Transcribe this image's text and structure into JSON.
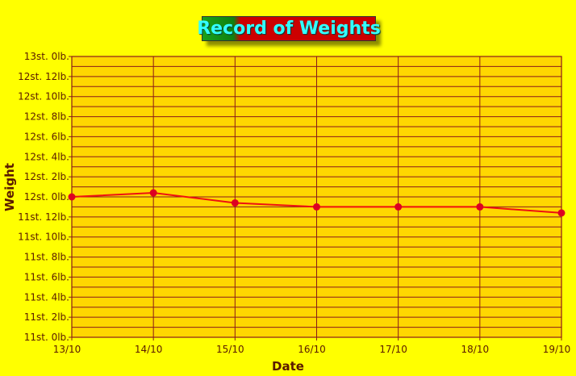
{
  "title": "Record of Weights",
  "chart_data": {
    "type": "line",
    "title": "Record of Weights",
    "xlabel": "Date",
    "ylabel": "Weight",
    "categories": [
      "13/10",
      "14/10",
      "15/10",
      "16/10",
      "17/10",
      "18/10",
      "19/10"
    ],
    "series": [
      {
        "values": [
          168.0,
          168.4,
          167.4,
          167.0,
          167.0,
          167.0,
          166.4
        ]
      }
    ],
    "ylim": [
      154,
      182
    ],
    "y_tick_labels": [
      "13st. 0lb.",
      "12st. 12lb.",
      "12st. 10lb.",
      "12st. 8lb.",
      "12st. 6lb.",
      "12st. 4lb.",
      "12st. 2lb.",
      "12st. 0lb.",
      "11st. 12lb.",
      "11st. 10lb.",
      "11st. 8lb.",
      "11st. 6lb.",
      "11st. 4lb.",
      "11st. 2lb.",
      "11st. 0lb."
    ],
    "y_tick_values": [
      182,
      180,
      178,
      176,
      174,
      172,
      170,
      168,
      166,
      164,
      162,
      160,
      158,
      156,
      154
    ],
    "minor_gridline_step": 1,
    "grid": true,
    "colors": {
      "background": "#ffff00",
      "plot_area": "#ffd700",
      "grid": "#8b1a1a",
      "line": "#ee1111",
      "marker": "#dd0022",
      "title_text": "#33ffff",
      "title_bg": "#cc0000"
    }
  }
}
